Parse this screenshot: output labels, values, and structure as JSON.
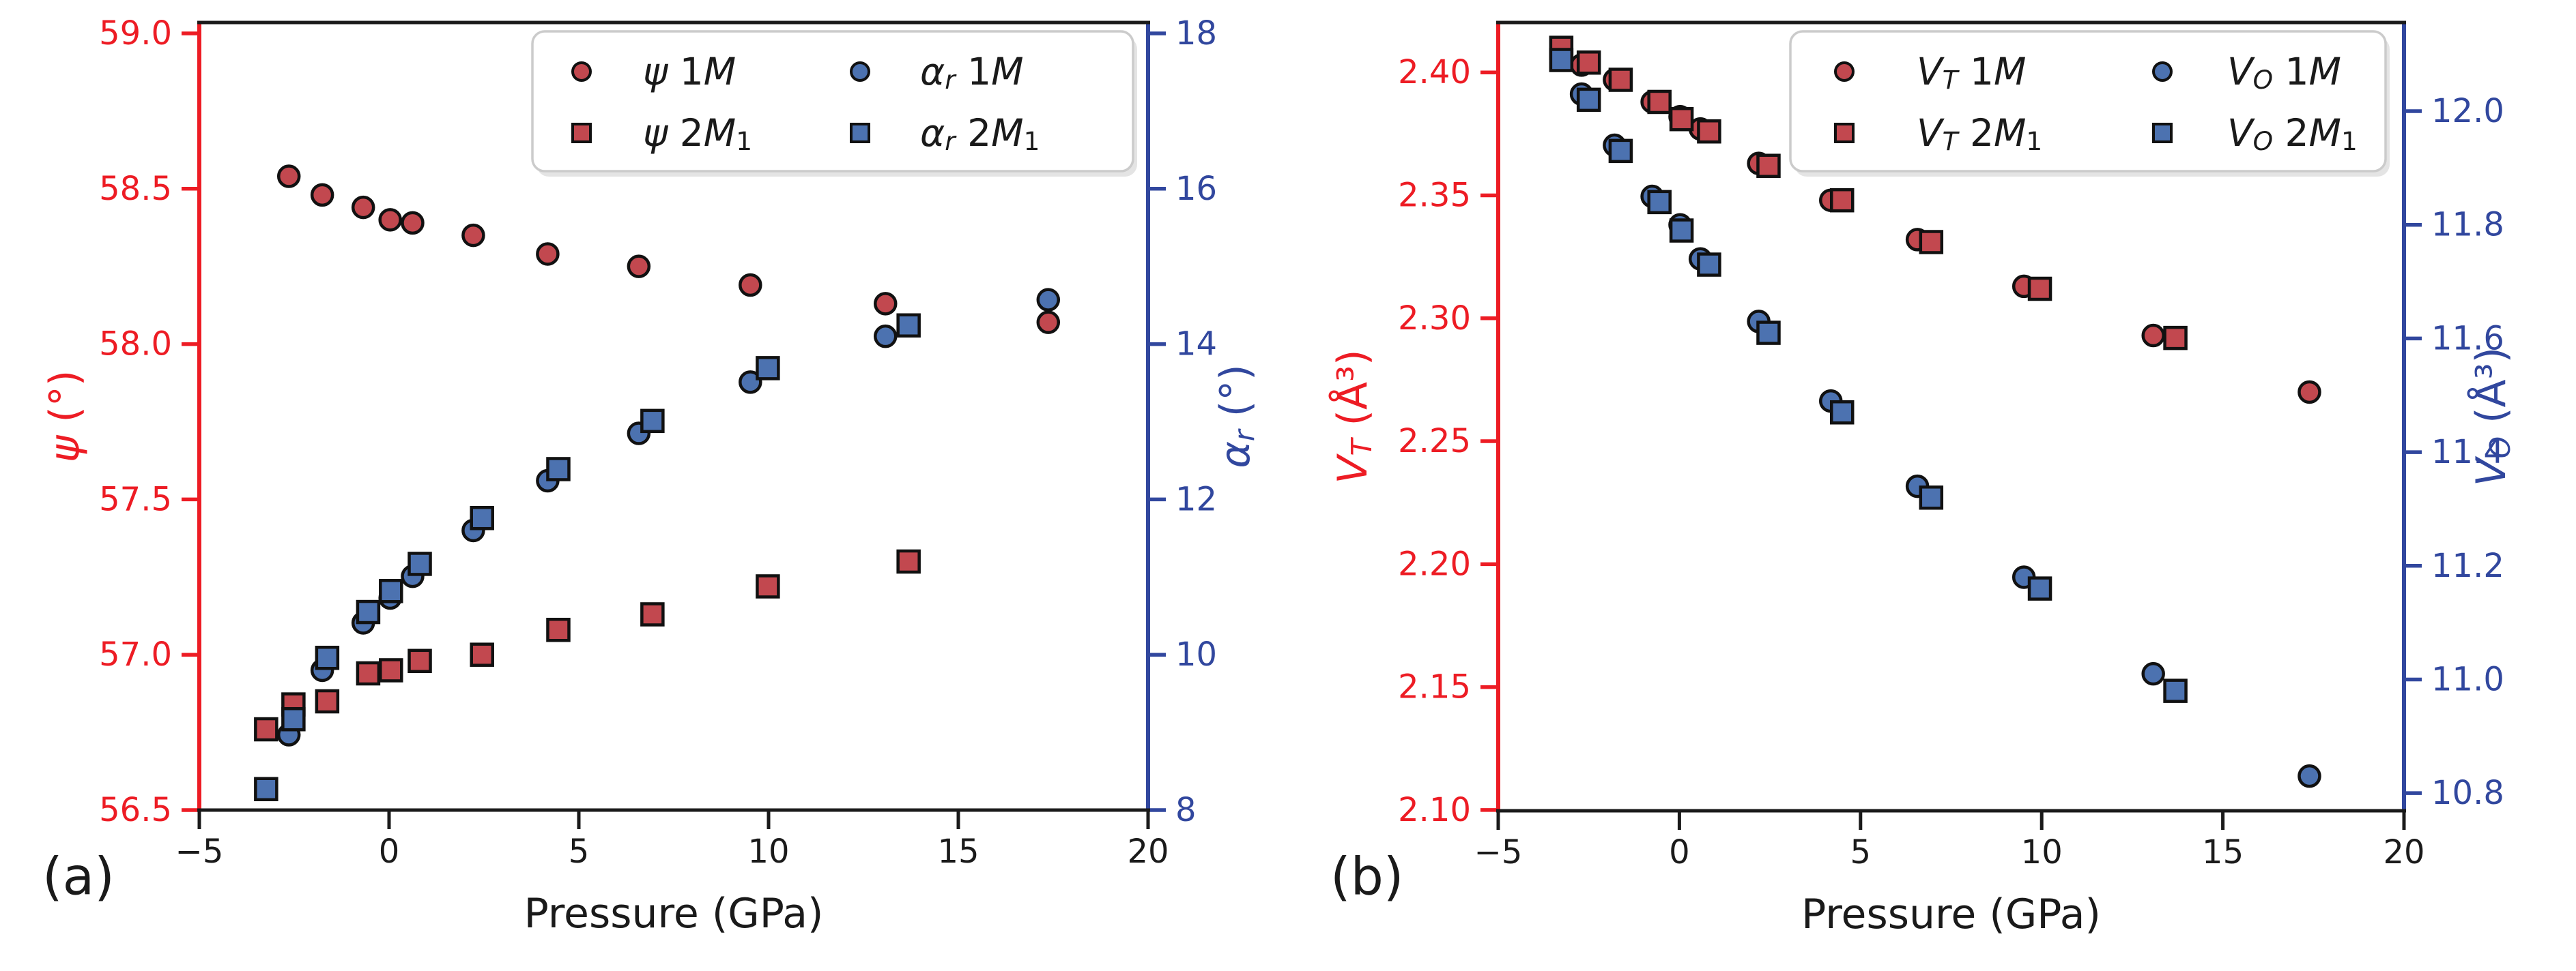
{
  "figure": {
    "background": "#ffffff",
    "text_color": "#1a1a1a"
  },
  "chart_data": [
    {
      "id": "a",
      "type": "scatter",
      "panel_label": "(a)",
      "grid": false,
      "legend_position": "upper center",
      "x_axis": {
        "label": "Pressure (GPa)",
        "math": false,
        "lim": [
          -5,
          20
        ],
        "ticks": [
          {
            "v": -5,
            "t": "−5"
          },
          {
            "v": 0,
            "t": "0"
          },
          {
            "v": 5,
            "t": "5"
          },
          {
            "v": 10,
            "t": "10"
          },
          {
            "v": 15,
            "t": "15"
          },
          {
            "v": 20,
            "t": "20"
          }
        ]
      },
      "left_axis": {
        "label": "ψ (°)",
        "math": true,
        "color": "#ed1c24",
        "lim": [
          56.5,
          59.035
        ],
        "ticks": [
          {
            "v": 59.0,
            "t": "59.0"
          },
          {
            "v": 58.5,
            "t": "58.5"
          },
          {
            "v": 58.0,
            "t": "58.0"
          },
          {
            "v": 57.5,
            "t": "57.5"
          },
          {
            "v": 57.0,
            "t": "57.0"
          },
          {
            "v": 56.5,
            "t": "56.5"
          }
        ]
      },
      "right_axis": {
        "label": "α_r (°)",
        "math": true,
        "color": "#31479e",
        "lim": [
          8.0,
          18.14
        ],
        "ticks": [
          {
            "v": 18,
            "t": "18"
          },
          {
            "v": 16,
            "t": "16"
          },
          {
            "v": 14,
            "t": "14"
          },
          {
            "v": 12,
            "t": "12"
          },
          {
            "v": 10,
            "t": "10"
          },
          {
            "v": 8,
            "t": "8"
          }
        ]
      },
      "legend_entries": [
        "ψ 1M",
        "ψ 2M_1",
        "α_r 1M",
        "α_r 2M_1"
      ],
      "series": [
        {
          "name": "ψ 1M",
          "axis": "left",
          "marker": "circle",
          "color": "#c2484f",
          "x": [
            -2.64,
            -1.76,
            -0.68,
            0.03,
            0.62,
            2.22,
            4.18,
            6.58,
            9.52,
            13.08,
            17.37
          ],
          "y": [
            58.54,
            58.48,
            58.44,
            58.4,
            58.39,
            58.35,
            58.29,
            58.25,
            58.19,
            58.13,
            58.07
          ]
        },
        {
          "name": "α_r 1M",
          "axis": "right",
          "marker": "circle",
          "color": "#4c72b0",
          "x": [
            -2.64,
            -1.76,
            -0.68,
            0.03,
            0.62,
            2.22,
            4.18,
            6.58,
            9.52,
            13.08,
            17.37
          ],
          "y": [
            8.97,
            9.8,
            10.41,
            10.73,
            11.01,
            11.6,
            12.24,
            12.85,
            13.51,
            14.1,
            14.57
          ]
        },
        {
          "name": "ψ 2M_1",
          "axis": "left",
          "marker": "square",
          "color": "#c2484f",
          "x": [
            -3.24,
            -2.52,
            -1.63,
            -0.55,
            0.05,
            0.81,
            2.45,
            4.46,
            6.94,
            9.98,
            13.69
          ],
          "y": [
            56.76,
            56.84,
            56.85,
            56.94,
            56.95,
            56.98,
            57.0,
            57.08,
            57.13,
            57.22,
            57.3
          ]
        },
        {
          "name": "α_r 2M_1",
          "axis": "right",
          "marker": "square",
          "color": "#4c72b0",
          "x": [
            -3.24,
            -2.52,
            -1.63,
            -0.55,
            0.05,
            0.81,
            2.45,
            4.46,
            6.94,
            9.98,
            13.69
          ],
          "y": [
            8.27,
            9.17,
            9.96,
            10.55,
            10.82,
            11.17,
            11.76,
            12.39,
            13.01,
            13.69,
            14.24
          ]
        }
      ]
    },
    {
      "id": "b",
      "type": "scatter",
      "panel_label": "(b)",
      "grid": false,
      "legend_position": "upper center",
      "x_axis": {
        "label": "Pressure (GPa)",
        "math": false,
        "lim": [
          -5,
          20
        ],
        "ticks": [
          {
            "v": -5,
            "t": "−5"
          },
          {
            "v": 0,
            "t": "0"
          },
          {
            "v": 5,
            "t": "5"
          },
          {
            "v": 10,
            "t": "10"
          },
          {
            "v": 15,
            "t": "15"
          },
          {
            "v": 20,
            "t": "20"
          }
        ]
      },
      "left_axis": {
        "label": "V_T (Å³)",
        "math": true,
        "color": "#ed1c24",
        "lim": [
          2.0997,
          2.4203
        ],
        "ticks": [
          {
            "v": 2.4,
            "t": "2.40"
          },
          {
            "v": 2.35,
            "t": "2.35"
          },
          {
            "v": 2.3,
            "t": "2.30"
          },
          {
            "v": 2.25,
            "t": "2.25"
          },
          {
            "v": 2.2,
            "t": "2.20"
          },
          {
            "v": 2.15,
            "t": "2.15"
          },
          {
            "v": 2.1,
            "t": "2.10"
          }
        ]
      },
      "right_axis": {
        "label": "V_O (Å³)",
        "math": true,
        "color": "#31479e",
        "lim": [
          10.769,
          12.156
        ],
        "ticks": [
          {
            "v": 12.0,
            "t": "12.0"
          },
          {
            "v": 11.8,
            "t": "11.8"
          },
          {
            "v": 11.6,
            "t": "11.6"
          },
          {
            "v": 11.4,
            "t": "11.4"
          },
          {
            "v": 11.2,
            "t": "11.2"
          },
          {
            "v": 11.0,
            "t": "11.0"
          },
          {
            "v": 10.8,
            "t": "10.8"
          }
        ]
      },
      "legend_entries": [
        "V_T 1M",
        "V_T 2M_1",
        "V_O 1M",
        "V_O 2M_1"
      ],
      "series": [
        {
          "name": "V_T 1M",
          "axis": "left",
          "marker": "circle",
          "color": "#c2484f",
          "x": [
            -2.7,
            -1.79,
            -0.75,
            0.02,
            0.58,
            2.19,
            4.18,
            6.57,
            9.51,
            13.08,
            17.39
          ],
          "y": [
            2.403,
            2.397,
            2.388,
            2.382,
            2.377,
            2.363,
            2.348,
            2.332,
            2.313,
            2.293,
            2.27
          ]
        },
        {
          "name": "V_O 1M",
          "axis": "right",
          "marker": "circle",
          "color": "#4c72b0",
          "x": [
            -2.7,
            -1.79,
            -0.75,
            0.02,
            0.58,
            2.19,
            4.18,
            6.57,
            9.51,
            13.08,
            17.39
          ],
          "y": [
            12.03,
            11.94,
            11.85,
            11.8,
            11.74,
            11.63,
            11.49,
            11.34,
            11.18,
            11.01,
            10.83
          ]
        },
        {
          "name": "V_T 2M_1",
          "axis": "left",
          "marker": "square",
          "color": "#c2484f",
          "x": [
            -3.26,
            -2.5,
            -1.62,
            -0.55,
            0.06,
            0.82,
            2.46,
            4.49,
            6.95,
            9.95,
            13.69
          ],
          "y": [
            2.41,
            2.404,
            2.397,
            2.388,
            2.381,
            2.376,
            2.362,
            2.348,
            2.331,
            2.312,
            2.292
          ]
        },
        {
          "name": "V_O 2M_1",
          "axis": "right",
          "marker": "square",
          "color": "#4c72b0",
          "x": [
            -3.26,
            -2.5,
            -1.62,
            -0.55,
            0.06,
            0.82,
            2.46,
            4.49,
            6.95,
            9.95,
            13.69
          ],
          "y": [
            12.09,
            12.02,
            11.93,
            11.84,
            11.79,
            11.73,
            11.61,
            11.47,
            11.32,
            11.16,
            10.98
          ]
        }
      ]
    }
  ]
}
